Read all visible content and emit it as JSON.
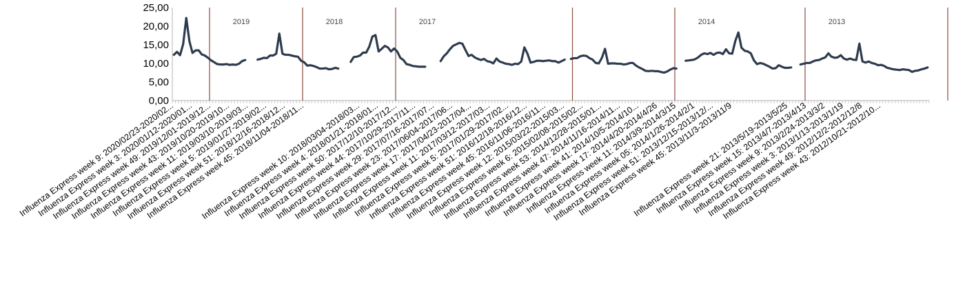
{
  "chart_data": {
    "type": "line",
    "title": "",
    "xlabel": "",
    "ylabel": "",
    "ylim": [
      0,
      25
    ],
    "yticks": [
      "0,00",
      "5,00",
      "10,00",
      "15,00",
      "20,00",
      "25,00"
    ],
    "grid": false,
    "legend": "none",
    "x_order": "reverse-chronological",
    "line_color": "#2e3b4e",
    "divider_color": "#8b4a3c",
    "seasons": [
      {
        "label": "",
        "start_index": 0
      },
      {
        "label": "2019",
        "start_index": 12
      },
      {
        "label": "2018",
        "start_index": 42
      },
      {
        "label": "2017",
        "start_index": 72
      },
      {
        "label": "",
        "start_index": 129
      },
      {
        "label": "2014",
        "start_index": 162
      },
      {
        "label": "2013",
        "start_index": 204
      },
      {
        "label": "",
        "start_index": 250
      }
    ],
    "x_tick_labels": [
      {
        "index": 0,
        "label": "Influenza Express week 9: 2020/02/23-2020/02..."
      },
      {
        "index": 6,
        "label": "Influenza Express week 3: 2020/01/12-2020/01..."
      },
      {
        "index": 12,
        "label": "Influenza Express week 49: 2019/12/01-2019/12..."
      },
      {
        "index": 18,
        "label": "Influenza Express week 43: 2019/10/20-2019/10..."
      },
      {
        "index": 24,
        "label": "Influenza Express week 11: 2019/03/10-2019/03..."
      },
      {
        "index": 30,
        "label": "Influenza Express week 5: 2019/01/27-2019/02..."
      },
      {
        "index": 36,
        "label": "Influenza Express week 51: 2018/12/16-2018/12..."
      },
      {
        "index": 42,
        "label": "Influenza Express week 45: 2018/11/04-2018/11..."
      },
      {
        "index": 60,
        "label": "Influenza Express week 10: 2018/03/04-2018/03..."
      },
      {
        "index": 66,
        "label": "Influenza Express week 4: 2018/01/21-2018/01..."
      },
      {
        "index": 72,
        "label": "Influenza Express week 50: 2017/12/10-2017/12..."
      },
      {
        "index": 78,
        "label": "Influenza Express week 44: 2017/10/29-2017/11..."
      },
      {
        "index": 84,
        "label": "Influenza Express week 29: 2017/07/16-2017/07..."
      },
      {
        "index": 90,
        "label": "Influenza Express week 23: 2017/06/04-2017/06..."
      },
      {
        "index": 96,
        "label": "Influenza Express week 17: 2017/04/23-2017/04..."
      },
      {
        "index": 102,
        "label": "Influenza Express week 11: 2017/03/12-2017/03..."
      },
      {
        "index": 108,
        "label": "Influenza Express week 5: 2017/01/29-2017/02..."
      },
      {
        "index": 114,
        "label": "Influenza Express week 51: 2016/12/18-2016/12..."
      },
      {
        "index": 120,
        "label": "Influenza Express week 45: 2016/11/06-2016/11..."
      },
      {
        "index": 126,
        "label": "Influenza Express week 12: 2015/03/22-2015/03..."
      },
      {
        "index": 132,
        "label": "Influenza Express week 6: 2015/02/08-2015/02..."
      },
      {
        "index": 138,
        "label": "Influenza Express week 53: 2014/12/28-2015/01..."
      },
      {
        "index": 144,
        "label": "Influenza Express week 47: 2014/11/16-2014/11..."
      },
      {
        "index": 150,
        "label": "Influenza Express week 41: 2014/10/5-2014/10..."
      },
      {
        "index": 156,
        "label": "Influenza Express week 17: 2014/4/20-2014/4/26"
      },
      {
        "index": 162,
        "label": "Influenza Express week 11: 2014/3/9-2014/3/15"
      },
      {
        "index": 168,
        "label": "Influenza Express week 05: 2014/1/26-2014/2/1"
      },
      {
        "index": 174,
        "label": "Influenza Express week 51: 2013/12/15-2013/12/..."
      },
      {
        "index": 180,
        "label": "Influenza Express week 45: 2013/11/3-2013/11/9"
      },
      {
        "index": 198,
        "label": "Influenza Express week 21: 2013/5/19-2013/5/25"
      },
      {
        "index": 204,
        "label": "Influenza Express week 15: 2013/4/7-2013/4/13"
      },
      {
        "index": 210,
        "label": "Influenza Express week 9: 2013/2/24-2013/3/2"
      },
      {
        "index": 216,
        "label": "Influenza Express week 3: 2013/1/13-2013/1/19"
      },
      {
        "index": 222,
        "label": "Influenza Express week 49: 2012/12/2-2012/12/8"
      },
      {
        "index": 228,
        "label": "Influenza Express week 43: 2012/10/21-2012/10..."
      }
    ],
    "series": [
      {
        "values": [
          12.3,
          13.1,
          12.2,
          15.2,
          22.2,
          16.0,
          12.8,
          13.5,
          13.5,
          12.4,
          12.1,
          11.5,
          10.8,
          10.3,
          9.8,
          9.7,
          9.7,
          9.8,
          9.6,
          9.7,
          9.6,
          9.9,
          10.6,
          10.9,
          null,
          null,
          null,
          11.0,
          11.2,
          11.5,
          11.4,
          12.1,
          12.1,
          12.6,
          18.0,
          12.6,
          12.3,
          12.3,
          12.1,
          11.9,
          11.8,
          10.7,
          10.3,
          9.4,
          9.5,
          9.3,
          9.0,
          8.6,
          8.6,
          8.7,
          8.4,
          8.5,
          8.8,
          8.6,
          null,
          null,
          null,
          10.4,
          11.7,
          11.8,
          12.1,
          12.9,
          12.9,
          14.5,
          17.2,
          17.6,
          13.2,
          13.9,
          14.7,
          14.3,
          13.2,
          14.0,
          13.2,
          11.5,
          10.9,
          9.8,
          9.6,
          9.3,
          9.2,
          9.1,
          9.1,
          9.1,
          null,
          null,
          null,
          null,
          10.6,
          11.9,
          12.7,
          13.8,
          14.7,
          15.1,
          15.5,
          15.3,
          13.6,
          12.0,
          12.3,
          11.6,
          11.2,
          10.9,
          11.2,
          10.6,
          10.4,
          10.0,
          11.3,
          10.5,
          10.2,
          9.9,
          9.8,
          9.6,
          9.9,
          9.8,
          10.5,
          14.3,
          12.6,
          10.2,
          10.4,
          10.7,
          10.7,
          10.6,
          10.7,
          10.8,
          10.6,
          10.6,
          10.2,
          10.6,
          11.0,
          null,
          11.2,
          11.4,
          11.4,
          11.9,
          12.1,
          12.0,
          11.4,
          11.0,
          10.1,
          10.0,
          11.5,
          13.9,
          9.9,
          10.0,
          10.0,
          9.9,
          9.9,
          9.7,
          9.8,
          10.1,
          10.1,
          9.4,
          8.9,
          8.5,
          8.0,
          7.9,
          8.0,
          7.9,
          7.9,
          7.7,
          7.5,
          7.8,
          8.3,
          8.7,
          8.6,
          null,
          null,
          10.7,
          10.8,
          10.9,
          11.1,
          11.6,
          12.3,
          12.7,
          12.5,
          12.8,
          12.3,
          12.8,
          12.9,
          12.5,
          13.8,
          12.7,
          12.6,
          16.0,
          18.3,
          14.2,
          13.4,
          13.2,
          12.7,
          10.8,
          9.8,
          10.1,
          9.9,
          9.5,
          9.1,
          8.6,
          8.7,
          9.5,
          9.1,
          8.8,
          8.8,
          8.9,
          null,
          null,
          9.7,
          9.9,
          10.1,
          10.1,
          10.5,
          10.8,
          10.9,
          11.3,
          11.6,
          12.7,
          11.8,
          11.5,
          11.6,
          12.2,
          11.3,
          11.0,
          11.3,
          11.0,
          10.9,
          15.3,
          10.5,
          10.2,
          10.5,
          10.1,
          9.9,
          9.5,
          9.6,
          9.3,
          8.8,
          8.6,
          8.4,
          8.3,
          8.2,
          8.4,
          8.3,
          8.2,
          7.7,
          8.0,
          8.1,
          8.4,
          8.6,
          8.9
        ]
      }
    ]
  }
}
